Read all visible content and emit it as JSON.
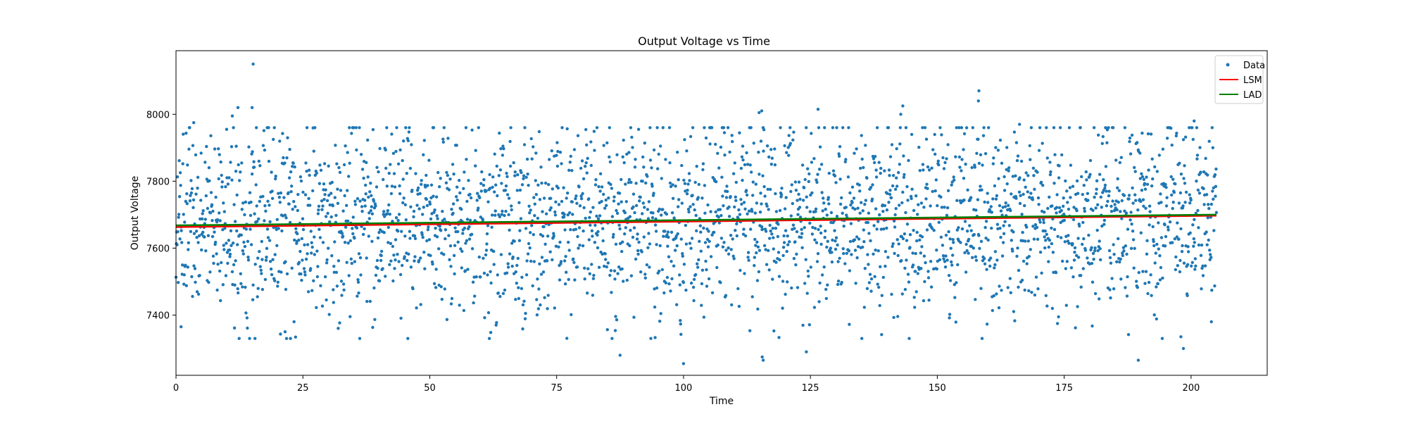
{
  "chart_data": {
    "type": "scatter",
    "title": "Output Voltage vs Time",
    "xlabel": "Time",
    "ylabel": "Output Voltage",
    "xlim": [
      0,
      215
    ],
    "ylim": [
      7220,
      8190
    ],
    "xticks": [
      0,
      25,
      50,
      75,
      100,
      125,
      150,
      175,
      200
    ],
    "yticks": [
      7400,
      7600,
      7800,
      8000
    ],
    "grid": false,
    "legend_position": "upper right",
    "legend": [
      {
        "label": "Data",
        "kind": "marker",
        "color": "#1f77b4"
      },
      {
        "label": "LSM",
        "kind": "line",
        "color": "#ff0000"
      },
      {
        "label": "LAD",
        "kind": "line",
        "color": "#008000"
      }
    ],
    "scatter": {
      "name": "Data",
      "color": "#1f77b4",
      "x_range": [
        0,
        205
      ],
      "count": 2900,
      "mean_start": 7670,
      "mean_end": 7700,
      "spread": 145,
      "outliers": [
        {
          "x": 15.2,
          "y": 8150
        },
        {
          "x": 12.2,
          "y": 8020
        },
        {
          "x": 15.0,
          "y": 8020
        },
        {
          "x": 11.1,
          "y": 7995
        },
        {
          "x": 3.5,
          "y": 7975
        },
        {
          "x": 1.0,
          "y": 7365
        },
        {
          "x": 21.5,
          "y": 7350
        },
        {
          "x": 87.5,
          "y": 7280
        },
        {
          "x": 100.0,
          "y": 7255
        },
        {
          "x": 115.4,
          "y": 8010
        },
        {
          "x": 114.9,
          "y": 8005
        },
        {
          "x": 115.7,
          "y": 7265
        },
        {
          "x": 115.5,
          "y": 7275
        },
        {
          "x": 124.2,
          "y": 7290
        },
        {
          "x": 126.5,
          "y": 8015
        },
        {
          "x": 143.2,
          "y": 8025
        },
        {
          "x": 142.8,
          "y": 8000
        },
        {
          "x": 158.2,
          "y": 8070
        },
        {
          "x": 158.1,
          "y": 8040
        },
        {
          "x": 166.2,
          "y": 7970
        },
        {
          "x": 189.6,
          "y": 7265
        },
        {
          "x": 198.5,
          "y": 7300
        },
        {
          "x": 198.0,
          "y": 7335
        },
        {
          "x": 200.6,
          "y": 7980
        },
        {
          "x": 204.0,
          "y": 7380
        }
      ]
    },
    "lines": [
      {
        "name": "LSM",
        "color": "#ff0000",
        "x": [
          0,
          205
        ],
        "y": [
          7663,
          7697
        ]
      },
      {
        "name": "LAD",
        "color": "#008000",
        "x": [
          0,
          205
        ],
        "y": [
          7668,
          7700
        ]
      }
    ]
  }
}
